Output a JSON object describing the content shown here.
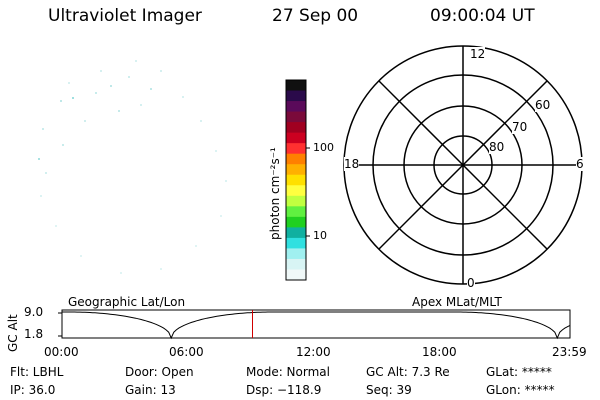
{
  "header": {
    "title": "Ultraviolet Imager",
    "date": "27 Sep 00",
    "time": "09:00:04 UT"
  },
  "colorbar": {
    "unit_label": "photon cm⁻²s⁻¹",
    "tick_labels": [
      "100",
      "10"
    ],
    "colors": [
      "#101010",
      "#2a0a4a",
      "#5a0a5a",
      "#7a0a3a",
      "#a00020",
      "#cc0020",
      "#ff3030",
      "#ff8000",
      "#ffb000",
      "#ffe000",
      "#ffff40",
      "#c0ff40",
      "#60f040",
      "#20d020",
      "#10b0a0",
      "#30e0e0",
      "#a0f0f0",
      "#d8f4f4",
      "#f0f8f8"
    ]
  },
  "polar": {
    "mlt_labels": [
      "12",
      "6",
      "0",
      "18"
    ],
    "lat_labels": [
      "60",
      "70",
      "80"
    ]
  },
  "altitude_panel": {
    "left_title": "Geographic Lat/Lon",
    "right_title": "Apex MLat/MLT",
    "ylabel": "GC Alt",
    "ytick_labels": [
      "9.0",
      "1.8"
    ],
    "xtick_labels": [
      "00:00",
      "06:00",
      "12:00",
      "18:00",
      "23:59"
    ],
    "current_time_hours": 9.0
  },
  "status": {
    "flt": "Flt: LBHL",
    "ip": "IP: 36.0",
    "door": "Door: Open",
    "gain": "Gain: 13",
    "mode": "Mode: Normal",
    "dsp": "Dsp: −118.9",
    "gc_alt": "GC Alt: 7.3 Re",
    "seq": "Seq: 39",
    "glat": "GLat: *****",
    "glon": "GLon: *****"
  }
}
